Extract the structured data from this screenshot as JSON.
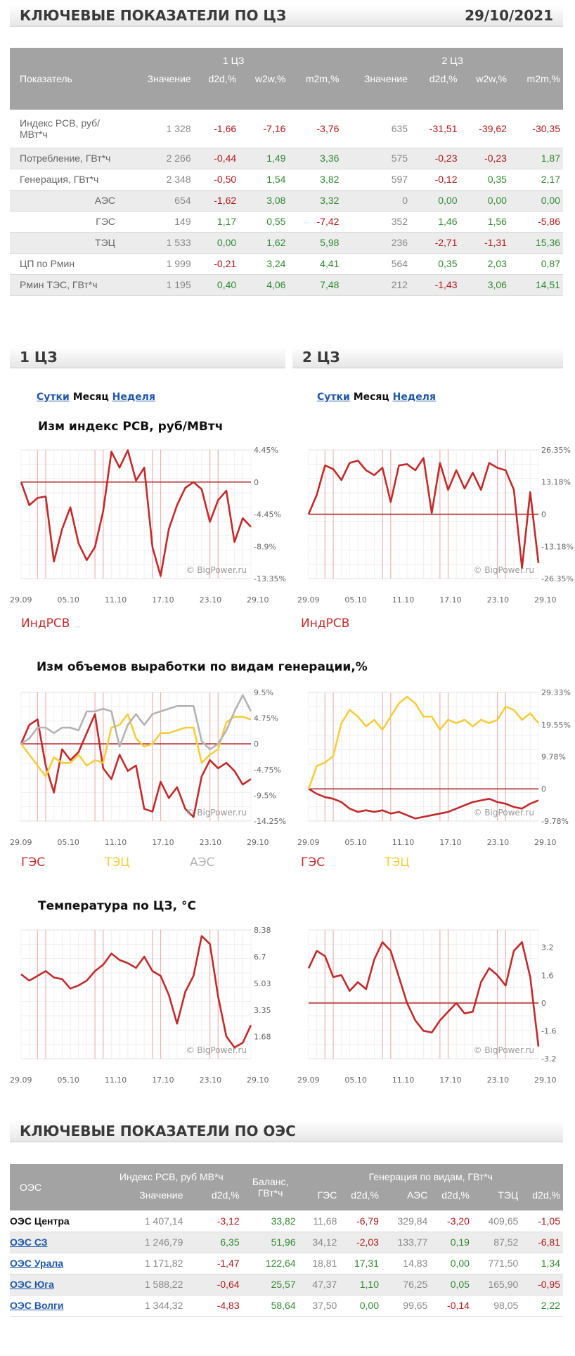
{
  "top": {
    "title": "КЛЮЧЕВЫЕ ПОКАЗАТЕЛИ ПО ЦЗ",
    "date": "29/10/2021"
  },
  "key_table": {
    "col_indicator": "Показатель",
    "zones": [
      "1 ЦЗ",
      "2 ЦЗ"
    ],
    "subcols": [
      "Значение",
      "d2d,%",
      "w2w,%",
      "m2m,%"
    ],
    "rows": [
      {
        "label": "Индекс РСВ, руб/МВт*ч",
        "sub": false,
        "v": [
          "1 328",
          "-1,66",
          "-7,16",
          "-3,76",
          "635",
          "-31,51",
          "-39,62",
          "-30,35"
        ]
      },
      {
        "label": "Потребление, ГВт*ч",
        "sub": false,
        "v": [
          "2 266",
          "-0,44",
          "1,49",
          "3,36",
          "575",
          "-0,23",
          "-0,23",
          "1,87"
        ]
      },
      {
        "label": "Генерация, ГВт*ч",
        "sub": false,
        "v": [
          "2 348",
          "-0,50",
          "1,54",
          "3,82",
          "597",
          "-0,12",
          "0,35",
          "2,17"
        ]
      },
      {
        "label": "АЭС",
        "sub": true,
        "v": [
          "654",
          "-1,62",
          "3,08",
          "3,32",
          "0",
          "0,00",
          "0,00",
          "0,00"
        ]
      },
      {
        "label": "ГЭС",
        "sub": true,
        "v": [
          "149",
          "1,17",
          "0,55",
          "-7,42",
          "352",
          "1,46",
          "1,56",
          "-5,86"
        ]
      },
      {
        "label": "ТЭЦ",
        "sub": true,
        "v": [
          "1 533",
          "0,00",
          "1,62",
          "5,98",
          "236",
          "-2,71",
          "-1,31",
          "15,36"
        ]
      },
      {
        "label": "ЦП по Рмин",
        "sub": false,
        "v": [
          "1 999",
          "-0,21",
          "3,24",
          "4,41",
          "564",
          "0,35",
          "2,03",
          "0,87"
        ]
      },
      {
        "label": "Рмин ТЭС, ГВт*ч",
        "sub": false,
        "v": [
          "1 195",
          "0,40",
          "4,06",
          "7,48",
          "212",
          "-1,43",
          "3,06",
          "14,51"
        ]
      }
    ]
  },
  "zone1": {
    "title": "1 ЦЗ"
  },
  "zone2": {
    "title": "2 ЦЗ"
  },
  "periods": {
    "day": "Сутки",
    "month": "Месяц",
    "week": "Неделя"
  },
  "sections": {
    "price": "Изм индекс РСВ, руб/МВтч",
    "gen": "Изм объемов выработки по видам генерации,%",
    "temp": "Температура по ЦЗ, °С"
  },
  "watermark": "© BigPower.ru",
  "legend": {
    "idx": "ИндРСВ",
    "ges": "ГЭС",
    "tec": "ТЭЦ",
    "aes": "АЭС"
  },
  "colors": {
    "red": "#c22a2a",
    "yellow": "#f5cd3c",
    "gray": "#b3b3b3",
    "link": "#1f58a8",
    "neg": "#b01818",
    "pos": "#2f8a2f",
    "header": "#a3a3a3"
  },
  "chart_data": [
    {
      "id": "c1",
      "type": "line",
      "x_ticks": [
        "29.09",
        "05.10",
        "11.10",
        "17.10",
        "23.10",
        "29.10"
      ],
      "y_ticks": [
        "4.45%",
        "0",
        "-4.45%",
        "-8.9%",
        "-13.35%"
      ],
      "ylim": [
        -13.35,
        4.45
      ],
      "series": [
        {
          "name": "ИндРСВ",
          "color": "#c22a2a",
          "values": [
            0.0,
            -3.2,
            -2.2,
            -2.0,
            -11.0,
            -6.5,
            -3.5,
            -8.5,
            -10.8,
            -9.0,
            -4.0,
            4.2,
            2.0,
            4.4,
            0.2,
            2.0,
            -9.0,
            -13.0,
            -6.5,
            -3.2,
            -0.8,
            0.0,
            -1.0,
            -5.5,
            -2.5,
            -1.2,
            -8.3,
            -5.0,
            -6.2
          ]
        }
      ]
    },
    {
      "id": "c2",
      "type": "line",
      "x_ticks": [
        "29.09",
        "05.10",
        "11.10",
        "17.10",
        "23.10",
        "29.10"
      ],
      "y_ticks": [
        "26.35%",
        "13.18%",
        "0",
        "-13.18%",
        "-26.35%"
      ],
      "ylim": [
        -26.35,
        26.35
      ],
      "series": [
        {
          "name": "ИндРСВ",
          "color": "#c22a2a",
          "values": [
            0.0,
            8.0,
            20.0,
            18.5,
            14.0,
            21.0,
            22.0,
            18.0,
            16.0,
            19.0,
            5.0,
            20.0,
            20.5,
            18.0,
            23.0,
            0.5,
            21.0,
            10.0,
            18.0,
            10.5,
            17.0,
            10.0,
            21.0,
            19.0,
            18.0,
            10.0,
            -22.0,
            9.0,
            -20.0
          ]
        }
      ]
    },
    {
      "id": "c3",
      "type": "line",
      "x_ticks": [
        "29.09",
        "05.10",
        "11.10",
        "17.10",
        "23.10",
        "29.10"
      ],
      "y_ticks": [
        "9.5%",
        "4.75%",
        "0",
        "-4.75%",
        "-9.5%",
        "-14.25%"
      ],
      "ylim": [
        -14.25,
        9.5
      ],
      "series": [
        {
          "name": "ГЭС",
          "color": "#c22a2a",
          "values": [
            0.0,
            3.5,
            4.5,
            -4.0,
            -9.0,
            -1.0,
            -3.0,
            -1.5,
            2.0,
            5.5,
            -4.5,
            -6.5,
            -2.0,
            -5.0,
            -4.0,
            -12.0,
            -12.5,
            -7.0,
            -10.0,
            -8.0,
            -12.0,
            -13.5,
            -6.0,
            -3.0,
            -4.5,
            -3.5,
            -5.0,
            -7.5,
            -6.5
          ]
        },
        {
          "name": "ТЭЦ",
          "color": "#f5cd3c",
          "values": [
            0.0,
            -2.0,
            -4.0,
            -6.0,
            -2.5,
            -3.5,
            -3.5,
            -2.0,
            -4.0,
            -3.0,
            -3.5,
            3.0,
            3.5,
            5.5,
            1.0,
            -0.5,
            0.0,
            2.0,
            2.0,
            2.5,
            3.0,
            3.0,
            -3.5,
            -2.0,
            -1.0,
            4.0,
            5.0,
            5.0,
            4.5
          ]
        },
        {
          "name": "АЭС",
          "color": "#b3b3b3",
          "values": [
            0.0,
            1.0,
            3.0,
            3.0,
            2.0,
            3.0,
            3.0,
            2.5,
            6.0,
            6.0,
            6.5,
            6.0,
            -0.5,
            3.5,
            5.5,
            3.5,
            5.5,
            6.0,
            6.5,
            7.0,
            7.0,
            7.0,
            0.5,
            -1.0,
            0.0,
            2.5,
            6.0,
            9.0,
            6.0
          ]
        }
      ]
    },
    {
      "id": "c4",
      "type": "line",
      "x_ticks": [
        "29.09",
        "05.10",
        "11.10",
        "17.10",
        "23.10",
        "29.10"
      ],
      "y_ticks": [
        "29.33%",
        "19.55%",
        "9.78%",
        "0",
        "-9.78%"
      ],
      "ylim": [
        -9.78,
        29.33
      ],
      "series": [
        {
          "name": "ГЭС",
          "color": "#c22a2a",
          "values": [
            0.0,
            -1.5,
            -2.5,
            -3.0,
            -4.0,
            -6.0,
            -7.0,
            -6.5,
            -7.0,
            -6.5,
            -7.5,
            -7.0,
            -8.0,
            -9.0,
            -8.5,
            -8.0,
            -7.5,
            -7.0,
            -6.0,
            -5.0,
            -4.0,
            -3.5,
            -3.0,
            -4.0,
            -4.5,
            -5.5,
            -6.0,
            -4.5,
            -3.5
          ]
        },
        {
          "name": "ТЭЦ",
          "color": "#f5cd3c",
          "values": [
            0.0,
            7.0,
            8.0,
            10.0,
            20.0,
            24.0,
            22.0,
            19.0,
            21.0,
            18.0,
            22.0,
            26.0,
            28.0,
            26.0,
            22.0,
            22.0,
            18.0,
            21.0,
            20.0,
            21.0,
            19.0,
            21.0,
            20.0,
            21.0,
            25.0,
            24.0,
            21.0,
            23.0,
            20.0
          ]
        }
      ]
    },
    {
      "id": "c5",
      "type": "line",
      "x_ticks": [
        "29.09",
        "05.10",
        "11.10",
        "17.10",
        "23.10",
        "29.10"
      ],
      "y_ticks": [
        "8.38",
        "6.7",
        "5.03",
        "3.35",
        "1.68"
      ],
      "ylim": [
        0.3,
        8.38
      ],
      "series": [
        {
          "name": "Температура",
          "color": "#c22a2a",
          "values": [
            5.6,
            5.2,
            5.5,
            5.8,
            5.4,
            5.3,
            4.7,
            4.9,
            5.2,
            5.8,
            6.2,
            6.9,
            6.5,
            6.3,
            6.0,
            6.7,
            5.8,
            5.5,
            4.3,
            2.5,
            4.5,
            5.5,
            8.0,
            7.5,
            4.2,
            1.7,
            1.0,
            1.3,
            2.4
          ]
        }
      ]
    },
    {
      "id": "c6",
      "type": "line",
      "x_ticks": [
        "29.09",
        "05.10",
        "11.10",
        "17.10",
        "23.10",
        "29.10"
      ],
      "y_ticks": [
        "3.2",
        "1.6",
        "0",
        "-1.6",
        "-3.2"
      ],
      "ylim": [
        -3.2,
        4.2
      ],
      "series": [
        {
          "name": "Температура",
          "color": "#c22a2a",
          "values": [
            2.0,
            3.0,
            2.7,
            1.5,
            1.6,
            0.7,
            1.2,
            0.8,
            2.5,
            3.5,
            3.0,
            1.5,
            0.0,
            -1.0,
            -1.6,
            -1.7,
            -1.0,
            -0.5,
            0.0,
            -0.6,
            -0.5,
            1.2,
            2.0,
            1.6,
            1.0,
            3.0,
            3.5,
            1.5,
            -2.5
          ]
        }
      ]
    }
  ],
  "oes": {
    "title": "КЛЮЧЕВЫЕ ПОКАЗАТЕЛИ ПО ОЭС",
    "col_oes": "ОЭС",
    "col_index": "Индекс РСВ, руб МВ*ч",
    "col_balance": "Баланс, ГВт*ч",
    "col_gen": "Генерация по видам, ГВт*ч",
    "sub": [
      "Значение",
      "d2d,%",
      "ГЭС",
      "d2d,%",
      "АЭС",
      "d2d,%",
      "ТЭЦ",
      "d2d,%"
    ],
    "rows": [
      {
        "name": "ОЭС Центра",
        "link": false,
        "v": [
          "1 407,14",
          "-3,12",
          "33,82",
          "11,68",
          "-6,79",
          "329,84",
          "-3,20",
          "409,65",
          "-1,05"
        ]
      },
      {
        "name": "ОЭС СЗ",
        "link": true,
        "v": [
          "1 246,79",
          "6,35",
          "51,96",
          "34,12",
          "-2,03",
          "133,77",
          "0,19",
          "87,52",
          "-6,81"
        ]
      },
      {
        "name": "ОЭС Урала",
        "link": true,
        "v": [
          "1 171,82",
          "-1,47",
          "122,64",
          "18,81",
          "17,31",
          "14,83",
          "0,00",
          "771,50",
          "1,34"
        ]
      },
      {
        "name": "ОЭС Юга",
        "link": true,
        "v": [
          "1 588,22",
          "-0,64",
          "25,57",
          "47,37",
          "1,10",
          "76,25",
          "0,05",
          "165,90",
          "-0,95"
        ]
      },
      {
        "name": "ОЭС Волги",
        "link": true,
        "v": [
          "1 344,32",
          "-4,83",
          "58,64",
          "37,50",
          "0,00",
          "99,65",
          "-0,14",
          "98,05",
          "2,22"
        ]
      }
    ]
  }
}
